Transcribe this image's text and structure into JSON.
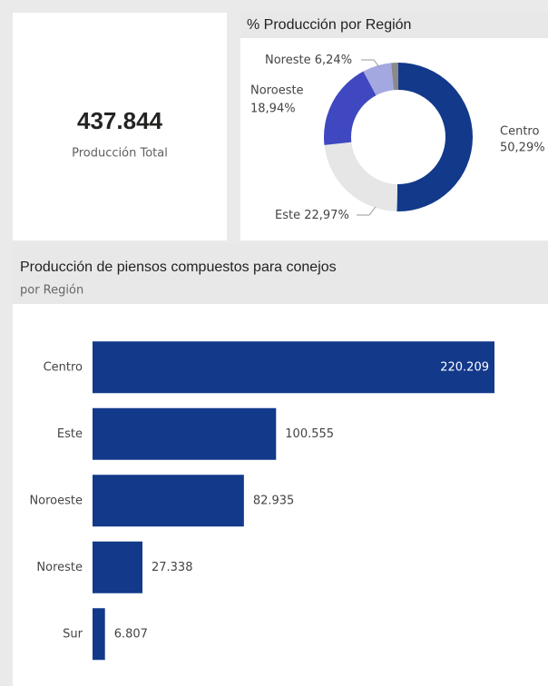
{
  "card": {
    "value": "437.844",
    "label": "Producción Total"
  },
  "chart_data": [
    {
      "type": "donut",
      "title": "% Producción por Región",
      "categories": [
        "Centro",
        "Este",
        "Noroeste",
        "Noreste",
        null
      ],
      "values": [
        50.29,
        22.97,
        18.94,
        6.24,
        1.55
      ],
      "value_labels": [
        "50,29%",
        "22,97%",
        "18,94%",
        "6,24%",
        null
      ],
      "colors": [
        "#12398a",
        "#e6e6e6",
        "#3f48c0",
        "#a3a8e0",
        "#8a8a8a"
      ]
    },
    {
      "type": "hbar",
      "title": "Producción de piensos compuestos para conejos",
      "subtitle": "por Región",
      "categories": [
        "Centro",
        "Este",
        "Noroeste",
        "Noreste",
        "Sur"
      ],
      "values": [
        220209,
        100555,
        82935,
        27338,
        6807
      ],
      "value_labels": [
        "220.209",
        "100.555",
        "82.935",
        "27.338",
        "6.807"
      ],
      "color": "#12398a"
    }
  ]
}
